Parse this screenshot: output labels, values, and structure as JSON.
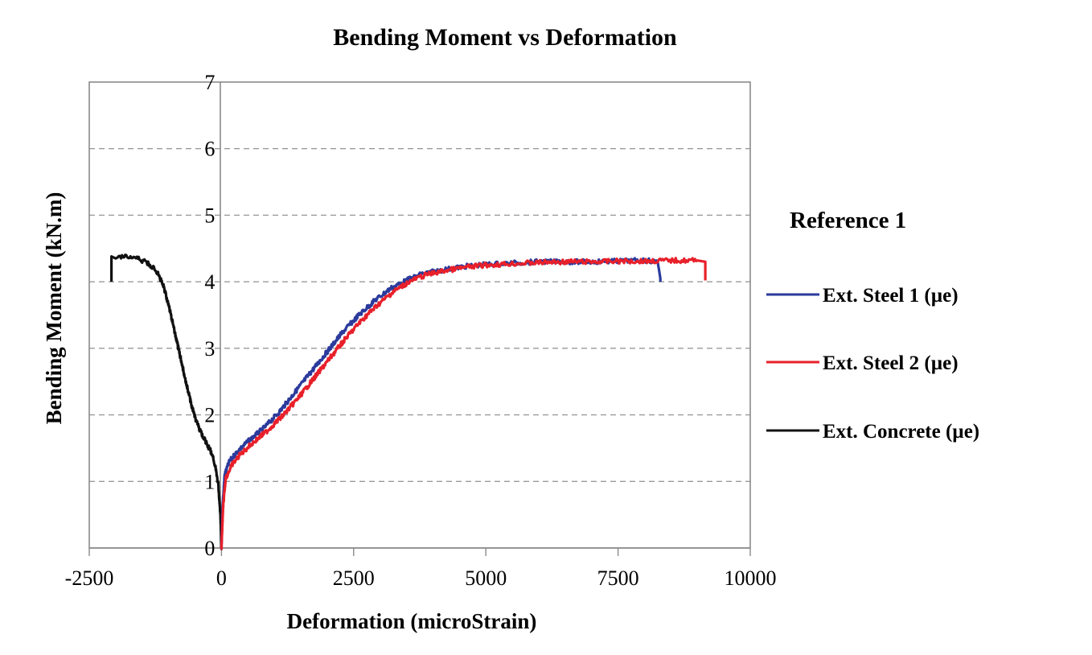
{
  "chart_data": {
    "type": "line",
    "title": "Bending Moment vs Deformation",
    "xlabel": "Deformation (microStrain)",
    "ylabel": "Bending Moment (kN.m)",
    "xlim": [
      -2500,
      10000
    ],
    "ylim": [
      0,
      7
    ],
    "x_ticks": [
      -2500,
      0,
      2500,
      5000,
      7500,
      10000
    ],
    "y_ticks": [
      0,
      1,
      2,
      3,
      4,
      5,
      6,
      7
    ],
    "grid": {
      "horizontal": "dashed",
      "vertical": false
    },
    "legend": {
      "title": "Reference 1",
      "position": "right"
    },
    "series": [
      {
        "name": "Ext. Steel 1 (µe)",
        "color": "#2b3a9c",
        "x": [
          0,
          20,
          60,
          150,
          300,
          500,
          800,
          1100,
          1400,
          1700,
          2000,
          2300,
          2600,
          2900,
          3200,
          3500,
          3800,
          4200,
          4600,
          5000,
          5500,
          6000,
          6500,
          7000,
          7500,
          8000,
          8250,
          8300,
          8300
        ],
        "y": [
          0,
          0.6,
          1.1,
          1.3,
          1.45,
          1.6,
          1.8,
          2.05,
          2.35,
          2.65,
          2.95,
          3.25,
          3.5,
          3.72,
          3.9,
          4.02,
          4.12,
          4.18,
          4.23,
          4.26,
          4.28,
          4.3,
          4.3,
          4.3,
          4.31,
          4.32,
          4.3,
          4.05,
          4.0
        ]
      },
      {
        "name": "Ext. Steel 2 (µe)",
        "color": "#e8202a",
        "x": [
          0,
          30,
          80,
          200,
          350,
          550,
          850,
          1150,
          1450,
          1750,
          2050,
          2350,
          2650,
          2950,
          3250,
          3550,
          3850,
          4250,
          4650,
          5000,
          5500,
          6000,
          6500,
          7000,
          7500,
          8000,
          8500,
          9000,
          9150,
          9150
        ],
        "y": [
          0,
          0.6,
          1.05,
          1.25,
          1.4,
          1.55,
          1.75,
          1.98,
          2.25,
          2.55,
          2.85,
          3.15,
          3.42,
          3.65,
          3.85,
          4.0,
          4.1,
          4.17,
          4.22,
          4.25,
          4.27,
          4.29,
          4.3,
          4.3,
          4.31,
          4.31,
          4.32,
          4.32,
          4.3,
          4.02
        ]
      },
      {
        "name": "Ext. Concrete (µe)",
        "color": "#111111",
        "x": [
          0,
          -20,
          -60,
          -120,
          -200,
          -300,
          -400,
          -500,
          -600,
          -700,
          -800,
          -900,
          -1000,
          -1100,
          -1200,
          -1300,
          -1400,
          -1500,
          -1600,
          -1700,
          -1800,
          -1900,
          -2000,
          -2080,
          -2080
        ],
        "y": [
          0,
          0.5,
          0.95,
          1.25,
          1.45,
          1.6,
          1.75,
          1.95,
          2.25,
          2.6,
          2.95,
          3.3,
          3.65,
          3.95,
          4.12,
          4.22,
          4.28,
          4.32,
          4.35,
          4.36,
          4.37,
          4.36,
          4.35,
          4.38,
          4.0
        ]
      }
    ]
  },
  "labels": {
    "title": "Bending Moment vs Deformation",
    "xlabel": "Deformation (microStrain)",
    "ylabel": "Bending Moment (kN.m)",
    "legend_title": "Reference 1",
    "legend_items": [
      "Ext. Steel 1 (µe)",
      "Ext. Steel 2 (µe)",
      "Ext. Concrete (µe)"
    ],
    "x_tick_labels": [
      "-2500",
      "0",
      "2500",
      "5000",
      "7500",
      "10000"
    ],
    "y_tick_labels": [
      "0",
      "1",
      "2",
      "3",
      "4",
      "5",
      "6",
      "7"
    ]
  }
}
